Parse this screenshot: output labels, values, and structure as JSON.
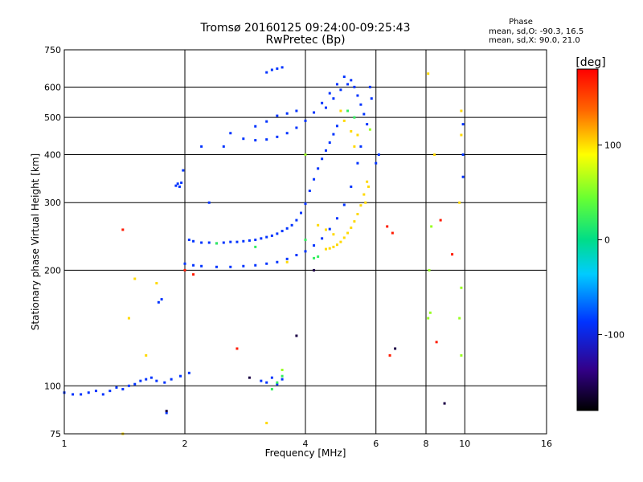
{
  "chart_data": {
    "type": "scatter",
    "title": "Tromsø 20160125 09:24:00-09:25:43",
    "subtitle": "RwPretec (Bp)",
    "xlabel": "Frequency [MHz]",
    "ylabel": "Stationary phase Virtual Height [km]",
    "x_scale": "log",
    "y_scale": "log",
    "xlim": [
      1,
      16
    ],
    "ylim": [
      75,
      750
    ],
    "x_ticks": [
      1,
      2,
      4,
      6,
      8,
      10,
      16
    ],
    "x_tick_labels": [
      "1",
      "2",
      "4",
      "6",
      "8",
      "10",
      "16"
    ],
    "y_ticks": [
      75,
      100,
      200,
      300,
      400,
      500,
      600,
      750
    ],
    "y_tick_labels": [
      "75",
      "100",
      "200",
      "300",
      "400",
      "500",
      "600",
      "750"
    ],
    "grid": true,
    "phase_stats": {
      "heading": "Phase",
      "line_o": "mean, sd,O: -90.3, 16.5",
      "line_x": "mean, sd,X:  90.0, 21.0"
    },
    "colorbar": {
      "label": "[deg]",
      "range": [
        -180,
        180
      ],
      "ticks": [
        100,
        0,
        -100
      ],
      "tick_labels": [
        "100",
        "0",
        "-100"
      ]
    },
    "series": [
      {
        "values": [
          [
            1.0,
            96,
            -100
          ],
          [
            1.05,
            95,
            -100
          ],
          [
            1.1,
            95,
            -100
          ],
          [
            1.15,
            96,
            -100
          ],
          [
            1.2,
            97,
            -100
          ],
          [
            1.25,
            95,
            -100
          ],
          [
            1.3,
            97,
            -100
          ],
          [
            1.35,
            99,
            -100
          ],
          [
            1.4,
            98,
            -100
          ],
          [
            1.45,
            100,
            -100
          ],
          [
            1.5,
            101,
            -100
          ],
          [
            1.55,
            103,
            -100
          ],
          [
            1.6,
            104,
            -100
          ],
          [
            1.65,
            105,
            -100
          ],
          [
            1.7,
            103,
            -100
          ],
          [
            1.78,
            102,
            -100
          ],
          [
            1.85,
            104,
            -100
          ],
          [
            1.95,
            106,
            -100
          ],
          [
            2.05,
            108,
            -100
          ],
          [
            1.72,
            165,
            -100
          ],
          [
            1.75,
            168,
            -100
          ],
          [
            1.8,
            85,
            -100
          ],
          [
            3.1,
            103,
            -100
          ],
          [
            3.2,
            102,
            -100
          ],
          [
            3.3,
            105,
            -100
          ],
          [
            3.4,
            101,
            -100
          ],
          [
            3.5,
            104,
            -100
          ],
          [
            1.9,
            332,
            -100
          ],
          [
            1.92,
            336,
            -100
          ],
          [
            1.94,
            330,
            -100
          ],
          [
            1.96,
            338,
            -100
          ],
          [
            1.98,
            364,
            -100
          ],
          [
            2.05,
            240,
            -100
          ],
          [
            2.1,
            238,
            -100
          ],
          [
            2.2,
            236,
            -100
          ],
          [
            2.3,
            236,
            -100
          ],
          [
            2.4,
            235,
            -100
          ],
          [
            2.5,
            236,
            -100
          ],
          [
            2.6,
            237,
            -100
          ],
          [
            2.7,
            237,
            -100
          ],
          [
            2.8,
            238,
            -100
          ],
          [
            2.9,
            239,
            -100
          ],
          [
            3.0,
            240,
            -100
          ],
          [
            3.1,
            242,
            -100
          ],
          [
            3.2,
            244,
            -100
          ],
          [
            3.3,
            246,
            -100
          ],
          [
            3.4,
            249,
            -100
          ],
          [
            3.5,
            253,
            -100
          ],
          [
            3.6,
            257,
            -100
          ],
          [
            3.7,
            262,
            -100
          ],
          [
            3.8,
            270,
            -100
          ],
          [
            3.9,
            282,
            -100
          ],
          [
            4.0,
            298,
            -100
          ],
          [
            4.1,
            322,
            -100
          ],
          [
            4.2,
            345,
            -100
          ],
          [
            4.3,
            368,
            -100
          ],
          [
            4.4,
            390,
            -100
          ],
          [
            4.5,
            410,
            -100
          ],
          [
            4.6,
            430,
            -100
          ],
          [
            4.7,
            452,
            -100
          ],
          [
            4.8,
            475,
            -100
          ],
          [
            2.0,
            208,
            -100
          ],
          [
            2.1,
            206,
            -100
          ],
          [
            2.2,
            205,
            -100
          ],
          [
            2.4,
            204,
            -100
          ],
          [
            2.6,
            204,
            -100
          ],
          [
            2.8,
            205,
            -100
          ],
          [
            3.0,
            206,
            -100
          ],
          [
            3.2,
            208,
            -100
          ],
          [
            3.4,
            210,
            -100
          ],
          [
            3.6,
            214,
            -100
          ],
          [
            3.8,
            219,
            -100
          ],
          [
            4.0,
            224,
            -100
          ],
          [
            4.2,
            232,
            -100
          ],
          [
            4.4,
            242,
            -100
          ],
          [
            4.6,
            256,
            -100
          ],
          [
            4.8,
            273,
            -100
          ],
          [
            5.0,
            296,
            -100
          ],
          [
            5.2,
            330,
            -100
          ],
          [
            5.4,
            380,
            -100
          ],
          [
            5.5,
            420,
            -100
          ],
          [
            2.6,
            455,
            -100
          ],
          [
            2.8,
            440,
            -100
          ],
          [
            3.0,
            436,
            -100
          ],
          [
            3.2,
            438,
            -100
          ],
          [
            3.4,
            445,
            -100
          ],
          [
            3.6,
            455,
            -100
          ],
          [
            3.8,
            470,
            -100
          ],
          [
            4.0,
            490,
            -100
          ],
          [
            4.2,
            515,
            -100
          ],
          [
            4.4,
            545,
            -100
          ],
          [
            4.6,
            578,
            -100
          ],
          [
            4.8,
            610,
            -100
          ],
          [
            5.0,
            638,
            -100
          ],
          [
            5.2,
            625,
            -100
          ],
          [
            3.0,
            474,
            -100
          ],
          [
            3.2,
            488,
            -100
          ],
          [
            3.4,
            505,
            -100
          ],
          [
            3.6,
            512,
            -100
          ],
          [
            3.8,
            520,
            -100
          ],
          [
            3.2,
            655,
            -100
          ],
          [
            3.3,
            665,
            -100
          ],
          [
            3.4,
            670,
            -100
          ],
          [
            3.5,
            675,
            -100
          ],
          [
            5.3,
            600,
            -100
          ],
          [
            5.4,
            570,
            -100
          ],
          [
            5.5,
            540,
            -100
          ],
          [
            5.6,
            510,
            -100
          ],
          [
            5.7,
            480,
            -100
          ],
          [
            5.8,
            600,
            -100
          ],
          [
            5.85,
            560,
            -100
          ],
          [
            6.1,
            400,
            -100
          ],
          [
            6.0,
            380,
            -100
          ],
          [
            4.5,
            530,
            -100
          ],
          [
            4.7,
            560,
            -100
          ],
          [
            4.9,
            590,
            -100
          ],
          [
            5.1,
            610,
            -100
          ],
          [
            9.9,
            400,
            -100
          ],
          [
            9.9,
            480,
            -100
          ],
          [
            9.9,
            350,
            -100
          ],
          [
            2.3,
            300,
            -100
          ],
          [
            2.2,
            420,
            -100
          ],
          [
            2.5,
            420,
            -100
          ]
        ]
      },
      {
        "values": [
          [
            4.5,
            227,
            110
          ],
          [
            4.6,
            228,
            110
          ],
          [
            4.7,
            230,
            110
          ],
          [
            4.8,
            233,
            110
          ],
          [
            4.9,
            237,
            110
          ],
          [
            5.0,
            243,
            110
          ],
          [
            5.1,
            250,
            110
          ],
          [
            5.2,
            258,
            110
          ],
          [
            5.3,
            268,
            110
          ],
          [
            5.4,
            280,
            110
          ],
          [
            5.5,
            295,
            110
          ],
          [
            5.6,
            315,
            110
          ],
          [
            5.7,
            340,
            110
          ],
          [
            5.75,
            330,
            110
          ],
          [
            5.65,
            300,
            110
          ],
          [
            5.4,
            450,
            110
          ],
          [
            5.3,
            420,
            110
          ],
          [
            5.2,
            460,
            110
          ],
          [
            4.9,
            520,
            110
          ],
          [
            5.0,
            490,
            110
          ],
          [
            1.5,
            190,
            110
          ],
          [
            1.45,
            150,
            110
          ],
          [
            1.6,
            120,
            110
          ],
          [
            1.7,
            185,
            110
          ],
          [
            4.5,
            255,
            110
          ],
          [
            4.3,
            262,
            110
          ],
          [
            4.7,
            248,
            110
          ],
          [
            9.8,
            520,
            110
          ],
          [
            9.8,
            450,
            110
          ],
          [
            9.7,
            300,
            110
          ],
          [
            8.1,
            650,
            110
          ],
          [
            8.4,
            400,
            110
          ],
          [
            3.2,
            80,
            110
          ],
          [
            3.6,
            210,
            110
          ],
          [
            1.4,
            75,
            110
          ]
        ]
      },
      {
        "values": [
          [
            8.1,
            150,
            60
          ],
          [
            8.2,
            155,
            60
          ],
          [
            8.15,
            200,
            60
          ],
          [
            8.25,
            260,
            60
          ],
          [
            9.8,
            180,
            60
          ],
          [
            9.8,
            120,
            60
          ],
          [
            9.7,
            150,
            60
          ],
          [
            5.8,
            465,
            60
          ],
          [
            4.0,
            400,
            60
          ],
          [
            3.5,
            110,
            60
          ]
        ]
      },
      {
        "values": [
          [
            3.3,
            98,
            20
          ],
          [
            3.4,
            102,
            20
          ],
          [
            3.5,
            106,
            20
          ],
          [
            4.2,
            215,
            20
          ],
          [
            4.3,
            217,
            20
          ],
          [
            4.0,
            240,
            20
          ],
          [
            3.0,
            230,
            20
          ],
          [
            2.4,
            235,
            20
          ],
          [
            5.1,
            520,
            20
          ],
          [
            5.3,
            500,
            20
          ]
        ]
      },
      {
        "values": [
          [
            2.7,
            125,
            170
          ],
          [
            6.4,
            260,
            170
          ],
          [
            6.6,
            250,
            170
          ],
          [
            9.3,
            220,
            170
          ],
          [
            8.7,
            270,
            170
          ],
          [
            1.4,
            255,
            170
          ],
          [
            2.0,
            200,
            170
          ],
          [
            8.5,
            130,
            170
          ],
          [
            2.1,
            195,
            170
          ],
          [
            6.5,
            120,
            170
          ]
        ]
      },
      {
        "values": [
          [
            8.9,
            90,
            -160
          ],
          [
            2.9,
            105,
            -160
          ],
          [
            6.7,
            125,
            -160
          ],
          [
            1.8,
            86,
            -160
          ],
          [
            4.2,
            200,
            -160
          ],
          [
            3.8,
            135,
            -160
          ]
        ]
      }
    ]
  }
}
